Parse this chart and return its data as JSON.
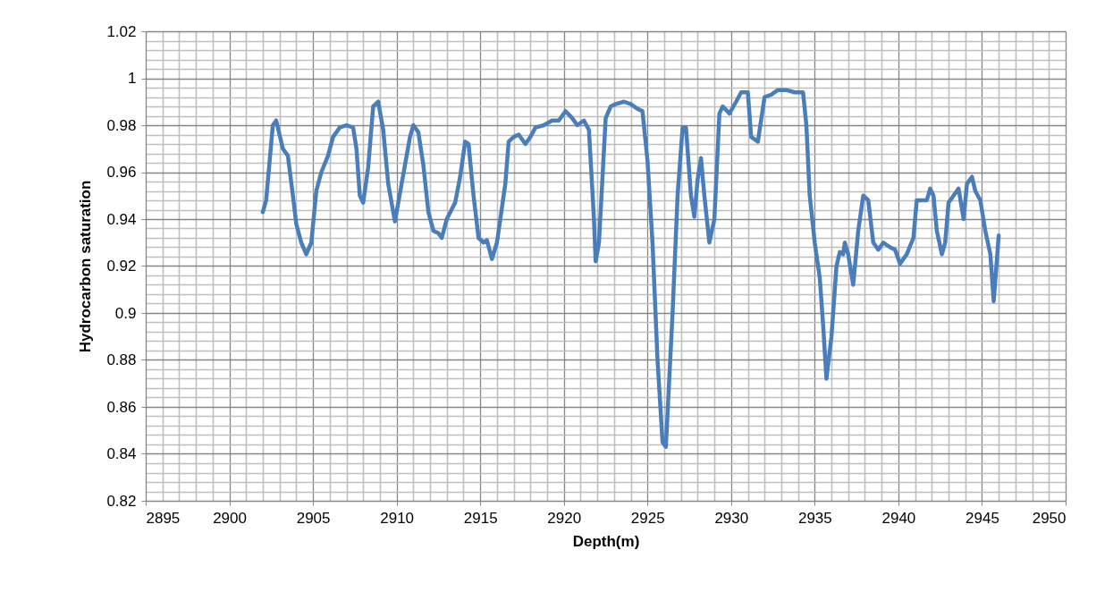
{
  "chart_data": {
    "type": "line",
    "xlabel": "Depth(m)",
    "ylabel": "Hydrocarbon saturation",
    "grid": true,
    "legend": false,
    "marker": "none",
    "line_style": "solid",
    "xlim": [
      2895,
      2950
    ],
    "ylim": [
      0.82,
      1.02
    ],
    "xticks": [
      2895,
      {
        "value": 2896,
        "label": null
      },
      {
        "value": 2897,
        "label": null
      },
      {
        "value": 2898,
        "label": null
      },
      {
        "value": 2899,
        "label": null
      },
      2900,
      {
        "value": 2901,
        "label": null
      },
      {
        "value": 2902,
        "label": null
      },
      {
        "value": 2903,
        "label": null
      },
      {
        "value": 2904,
        "label": null
      },
      2905,
      {
        "value": 2906,
        "label": null
      },
      {
        "value": 2907,
        "label": null
      },
      {
        "value": 2908,
        "label": null
      },
      {
        "value": 2909,
        "label": null
      },
      2910,
      {
        "value": 2911,
        "label": null
      },
      {
        "value": 2912,
        "label": null
      },
      {
        "value": 2913,
        "label": null
      },
      {
        "value": 2914,
        "label": null
      },
      2915,
      {
        "value": 2916,
        "label": null
      },
      {
        "value": 2917,
        "label": null
      },
      {
        "value": 2918,
        "label": null
      },
      {
        "value": 2919,
        "label": null
      },
      2920,
      {
        "value": 2921,
        "label": null
      },
      {
        "value": 2922,
        "label": null
      },
      {
        "value": 2923,
        "label": null
      },
      {
        "value": 2924,
        "label": null
      },
      2925,
      {
        "value": 2926,
        "label": null
      },
      {
        "value": 2927,
        "label": null
      },
      {
        "value": 2928,
        "label": null
      },
      {
        "value": 2929,
        "label": null
      },
      2930,
      {
        "value": 2931,
        "label": null
      },
      {
        "value": 2932,
        "label": null
      },
      {
        "value": 2933,
        "label": null
      },
      {
        "value": 2934,
        "label": null
      },
      2935,
      {
        "value": 2936,
        "label": null
      },
      {
        "value": 2937,
        "label": null
      },
      {
        "value": 2938,
        "label": null
      },
      {
        "value": 2939,
        "label": null
      },
      2940,
      {
        "value": 2941,
        "label": null
      },
      {
        "value": 2942,
        "label": null
      },
      {
        "value": 2943,
        "label": null
      },
      {
        "value": 2944,
        "label": null
      },
      2945,
      {
        "value": 2946,
        "label": null
      },
      {
        "value": 2947,
        "label": null
      },
      {
        "value": 2948,
        "label": null
      },
      {
        "value": 2949,
        "label": null
      },
      2950
    ],
    "yticks": [
      0.82,
      {
        "value": 0.824,
        "label": null
      },
      {
        "value": 0.828,
        "label": null
      },
      {
        "value": 0.832,
        "label": null
      },
      {
        "value": 0.836,
        "label": null
      },
      0.84,
      {
        "value": 0.844,
        "label": null
      },
      {
        "value": 0.848,
        "label": null
      },
      {
        "value": 0.852,
        "label": null
      },
      {
        "value": 0.856,
        "label": null
      },
      0.86,
      {
        "value": 0.864,
        "label": null
      },
      {
        "value": 0.868,
        "label": null
      },
      {
        "value": 0.872,
        "label": null
      },
      {
        "value": 0.876,
        "label": null
      },
      0.88,
      {
        "value": 0.884,
        "label": null
      },
      {
        "value": 0.888,
        "label": null
      },
      {
        "value": 0.892,
        "label": null
      },
      {
        "value": 0.896,
        "label": null
      },
      0.9,
      {
        "value": 0.904,
        "label": null
      },
      {
        "value": 0.908,
        "label": null
      },
      {
        "value": 0.912,
        "label": null
      },
      {
        "value": 0.916,
        "label": null
      },
      0.92,
      {
        "value": 0.924,
        "label": null
      },
      {
        "value": 0.928,
        "label": null
      },
      {
        "value": 0.932,
        "label": null
      },
      {
        "value": 0.936,
        "label": null
      },
      0.94,
      {
        "value": 0.944,
        "label": null
      },
      {
        "value": 0.948,
        "label": null
      },
      {
        "value": 0.952,
        "label": null
      },
      {
        "value": 0.956,
        "label": null
      },
      0.96,
      {
        "value": 0.964,
        "label": null
      },
      {
        "value": 0.968,
        "label": null
      },
      {
        "value": 0.972,
        "label": null
      },
      {
        "value": 0.976,
        "label": null
      },
      0.98,
      {
        "value": 0.984,
        "label": null
      },
      {
        "value": 0.988,
        "label": null
      },
      {
        "value": 0.992,
        "label": null
      },
      {
        "value": 0.996,
        "label": null
      },
      1,
      {
        "value": 1.004,
        "label": null
      },
      {
        "value": 1.008,
        "label": null
      },
      {
        "value": 1.012,
        "label": null
      },
      {
        "value": 1.016,
        "label": null
      },
      1.02
    ],
    "series": [
      {
        "color": "#4a7ebb",
        "x": [
          2902.0,
          2902.2,
          2902.6,
          2902.8,
          2903.2,
          2903.5,
          2903.8,
          2904.0,
          2904.3,
          2904.6,
          2904.9,
          2905.2,
          2905.5,
          2905.9,
          2906.2,
          2906.6,
          2907.0,
          2907.4,
          2907.6,
          2907.8,
          2908.0,
          2908.3,
          2908.6,
          2908.9,
          2909.2,
          2909.5,
          2909.9,
          2910.3,
          2910.8,
          2911.0,
          2911.3,
          2911.6,
          2911.9,
          2912.2,
          2912.5,
          2912.7,
          2913.0,
          2913.5,
          2913.8,
          2914.1,
          2914.3,
          2914.6,
          2914.9,
          2915.2,
          2915.4,
          2915.7,
          2916.0,
          2916.2,
          2916.5,
          2916.7,
          2917.0,
          2917.3,
          2917.7,
          2918.0,
          2918.3,
          2918.8,
          2919.3,
          2919.7,
          2920.1,
          2920.5,
          2920.8,
          2921.2,
          2921.5,
          2921.8,
          2921.9,
          2922.1,
          2922.5,
          2922.8,
          2923.1,
          2923.6,
          2924.0,
          2924.4,
          2924.7,
          2925.0,
          2925.3,
          2925.6,
          2925.9,
          2926.1,
          2926.5,
          2926.8,
          2927.1,
          2927.3,
          2927.6,
          2927.8,
          2928.0,
          2928.2,
          2928.4,
          2928.7,
          2929.0,
          2929.3,
          2929.5,
          2929.9,
          2930.3,
          2930.6,
          2931.0,
          2931.2,
          2931.6,
          2932.0,
          2932.4,
          2932.8,
          2933.3,
          2933.8,
          2934.3,
          2934.5,
          2934.7,
          2935.0,
          2935.3,
          2935.5,
          2935.7,
          2936.0,
          2936.3,
          2936.5,
          2936.7,
          2936.8,
          2937.0,
          2937.3,
          2937.6,
          2937.9,
          2938.2,
          2938.5,
          2938.8,
          2939.1,
          2939.5,
          2939.8,
          2940.1,
          2940.5,
          2940.9,
          2941.1,
          2941.4,
          2941.7,
          2941.9,
          2942.1,
          2942.3,
          2942.6,
          2942.8,
          2943.0,
          2943.3,
          2943.6,
          2943.9,
          2944.1,
          2944.4,
          2944.6,
          2944.9,
          2945.2,
          2945.5,
          2945.7,
          2946.0
        ],
        "values": [
          0.943,
          0.948,
          0.98,
          0.982,
          0.97,
          0.967,
          0.95,
          0.938,
          0.93,
          0.925,
          0.93,
          0.952,
          0.96,
          0.967,
          0.975,
          0.979,
          0.98,
          0.979,
          0.97,
          0.95,
          0.947,
          0.962,
          0.988,
          0.99,
          0.978,
          0.955,
          0.939,
          0.955,
          0.975,
          0.98,
          0.977,
          0.963,
          0.943,
          0.935,
          0.934,
          0.932,
          0.94,
          0.947,
          0.958,
          0.973,
          0.972,
          0.95,
          0.932,
          0.93,
          0.931,
          0.923,
          0.93,
          0.94,
          0.955,
          0.973,
          0.975,
          0.976,
          0.972,
          0.975,
          0.979,
          0.98,
          0.982,
          0.982,
          0.986,
          0.983,
          0.98,
          0.982,
          0.978,
          0.94,
          0.922,
          0.93,
          0.983,
          0.988,
          0.989,
          0.99,
          0.989,
          0.987,
          0.986,
          0.965,
          0.93,
          0.88,
          0.845,
          0.843,
          0.9,
          0.95,
          0.979,
          0.979,
          0.95,
          0.941,
          0.957,
          0.966,
          0.95,
          0.93,
          0.94,
          0.985,
          0.988,
          0.985,
          0.99,
          0.994,
          0.994,
          0.975,
          0.973,
          0.992,
          0.993,
          0.995,
          0.995,
          0.994,
          0.994,
          0.98,
          0.95,
          0.93,
          0.915,
          0.895,
          0.872,
          0.89,
          0.92,
          0.926,
          0.925,
          0.93,
          0.925,
          0.912,
          0.935,
          0.95,
          0.948,
          0.93,
          0.927,
          0.93,
          0.928,
          0.927,
          0.921,
          0.925,
          0.932,
          0.948,
          0.948,
          0.948,
          0.953,
          0.95,
          0.935,
          0.925,
          0.93,
          0.947,
          0.95,
          0.953,
          0.94,
          0.955,
          0.958,
          0.952,
          0.948,
          0.935,
          0.925,
          0.905,
          0.933
        ]
      }
    ]
  }
}
